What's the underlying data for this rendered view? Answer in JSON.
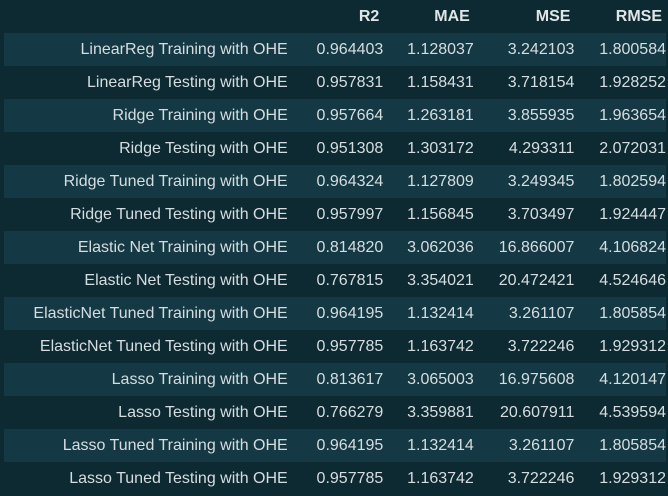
{
  "table": {
    "columns": [
      "",
      "R2",
      "MAE",
      "MSE",
      "RMSE"
    ],
    "rows": [
      {
        "label": "LinearReg Training with OHE",
        "values": [
          "0.964403",
          "1.128037",
          "3.242103",
          "1.800584"
        ]
      },
      {
        "label": "LinearReg Testing with OHE",
        "values": [
          "0.957831",
          "1.158431",
          "3.718154",
          "1.928252"
        ]
      },
      {
        "label": "Ridge Training with OHE",
        "values": [
          "0.957664",
          "1.263181",
          "3.855935",
          "1.963654"
        ]
      },
      {
        "label": "Ridge Testing with OHE",
        "values": [
          "0.951308",
          "1.303172",
          "4.293311",
          "2.072031"
        ]
      },
      {
        "label": "Ridge Tuned Training with OHE",
        "values": [
          "0.964324",
          "1.127809",
          "3.249345",
          "1.802594"
        ]
      },
      {
        "label": "Ridge Tuned Testing with OHE",
        "values": [
          "0.957997",
          "1.156845",
          "3.703497",
          "1.924447"
        ]
      },
      {
        "label": "Elastic Net Training with OHE",
        "values": [
          "0.814820",
          "3.062036",
          "16.866007",
          "4.106824"
        ]
      },
      {
        "label": "Elastic Net Testing with OHE",
        "values": [
          "0.767815",
          "3.354021",
          "20.472421",
          "4.524646"
        ]
      },
      {
        "label": "ElasticNet Tuned Training with OHE",
        "values": [
          "0.964195",
          "1.132414",
          "3.261107",
          "1.805854"
        ]
      },
      {
        "label": "ElasticNet Tuned Testing with OHE",
        "values": [
          "0.957785",
          "1.163742",
          "3.722246",
          "1.929312"
        ]
      },
      {
        "label": "Lasso Training with OHE",
        "values": [
          "0.813617",
          "3.065003",
          "16.975608",
          "4.120147"
        ]
      },
      {
        "label": "Lasso Testing with OHE",
        "values": [
          "0.766279",
          "3.359881",
          "20.607911",
          "4.539594"
        ]
      },
      {
        "label": "Lasso Tuned Training with OHE",
        "values": [
          "0.964195",
          "1.132414",
          "3.261107",
          "1.805854"
        ]
      },
      {
        "label": "Lasso Tuned Testing with OHE",
        "values": [
          "0.957785",
          "1.163742",
          "3.722246",
          "1.929312"
        ]
      }
    ]
  },
  "colors": {
    "background": "#0d2a33",
    "row_stripe": "#143944",
    "text": "#d6dde0"
  }
}
